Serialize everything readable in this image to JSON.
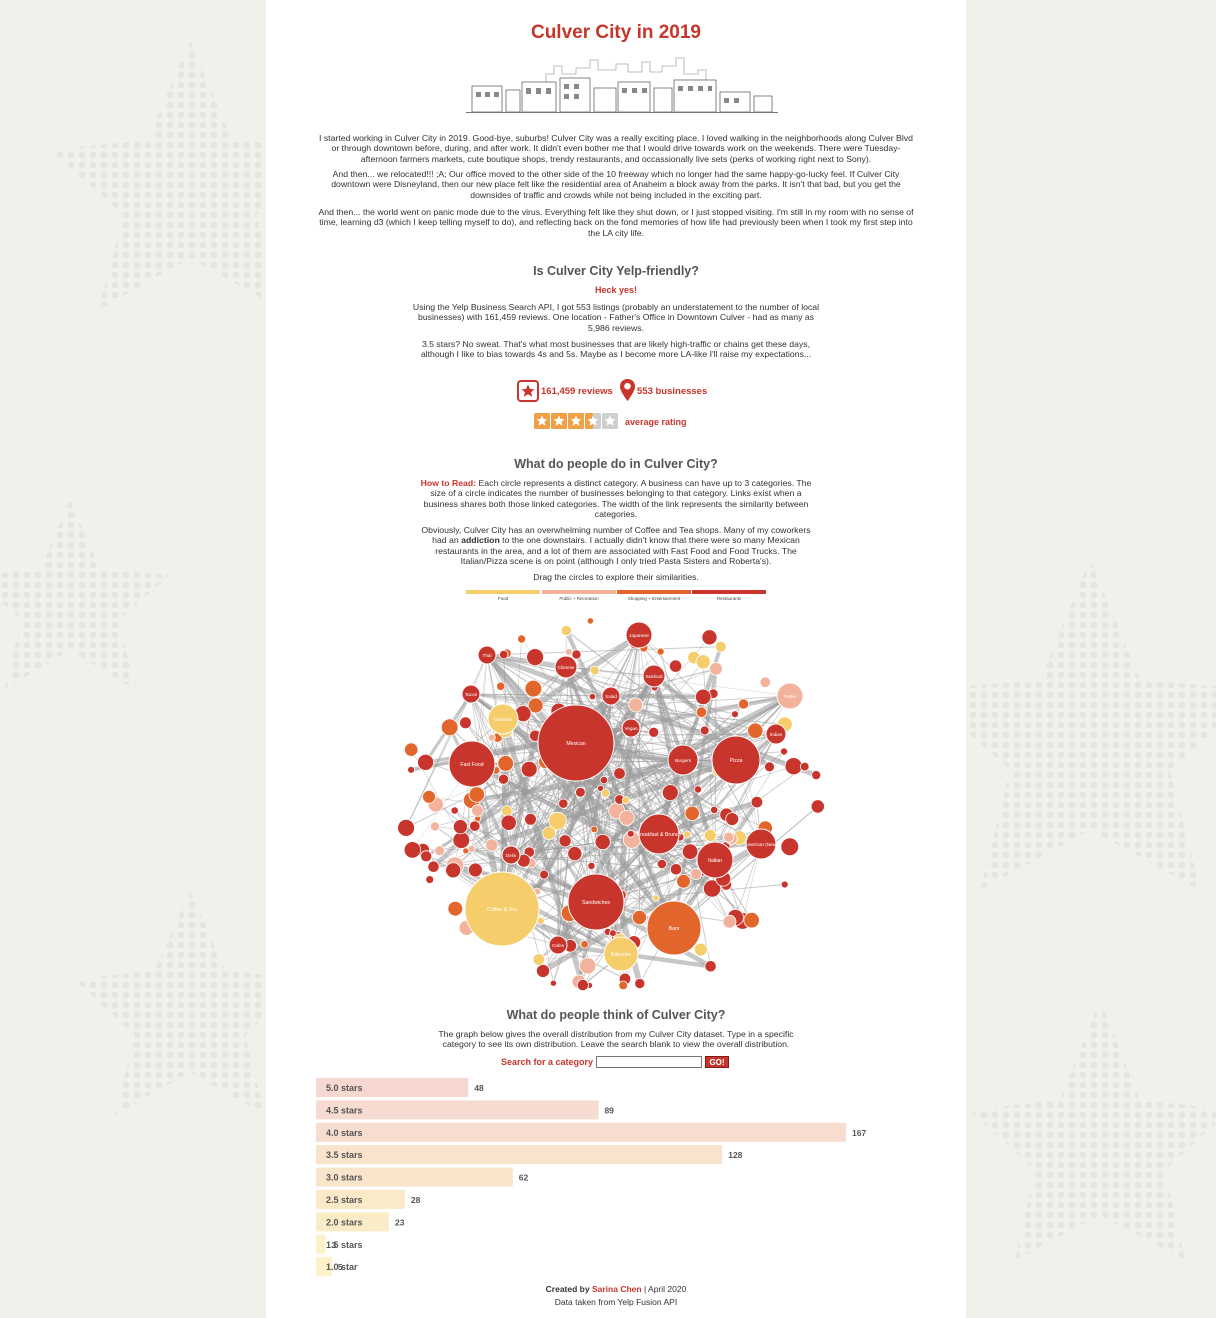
{
  "header": {
    "title": "Culver City in 2019"
  },
  "intro": {
    "p1": "I started working in Culver City in 2019. Good-bye, suburbs! Culver City was a really exciting place. I loved walking in the neighborhoods along Culver Blvd or through downtown before, during, and after work. It didn't even bother me that I would drive towards work on the weekends. There were Tuesday-afternoon farmers markets, cute boutique shops, trendy restaurants, and occassionally live sets (perks of working right next to Sony).",
    "p2": "And then... we relocated!!! ;A; Our office moved to the other side of the 10 freeway which no longer had the same happy-go-lucky feel. If Culver City downtown were Disneyland, then our new place felt like the residential area of Anaheim a block away from the parks. It isn't that bad, but you get the downsides of traffic and crowds while not being included in the exciting part.",
    "p3": "And then... the world went on panic mode due to the virus. Everything felt like they shut down, or I just stopped visiting. I'm still in my room with no sense of time, learning d3 (which I keep telling myself to do), and reflecting back on the fond memories of how life had previously been when I took my first step into the LA city life."
  },
  "yelp_section": {
    "heading": "Is Culver City Yelp-friendly?",
    "answer": "Heck yes!",
    "p1": "Using the Yelp Business Search API, I got 553 listings (probably an understatement to the number of local businesses) with 161,459 reviews. One location - Father's Office in Downtown Culver - had as many as 5,986 reviews.",
    "p2": "3.5 stars? No sweat. That's what most businesses that are likely high-traffic or chains get these days, although I like to bias towards 4s and 5s. Maybe as I become more LA-like I'll raise my expectations...",
    "reviews_stat": "161,459 reviews",
    "business_stat": "553 businesses",
    "rating_label": "average rating",
    "rating_value": 3.5,
    "rating_max": 5,
    "colors": {
      "accent": "#c8352c",
      "star_fill": "#f0a145",
      "star_empty": "#cfcfcf"
    }
  },
  "network_section": {
    "heading": "What do people do in Culver City?",
    "how_label": "How to Read:",
    "how_text": " Each circle represents a distinct category. A business can have up to 3 categories. The size of a circle indicates the number of businesses belonging to that category. Links exist when a business shares both those linked categories. The width of the link represents the similarity between categories.",
    "p2_before": "Obviously, Culver City has an overwhelming number of Coffee and Tea shops. Many of my coworkers had an ",
    "p2_bold": "addiction",
    "p2_after": " to the one downstairs. I actually didn't know that there were so many Mexican restaurants in the area, and a lot of them are associated with Fast Food and Food Trucks. The Italian/Pizza scene is on point (although I only tried Pasta Sisters and Roberta's).",
    "drag_hint": "Drag the circles to explore their similarities.",
    "legend": [
      {
        "label": "Food",
        "color": "#f5cd6a"
      },
      {
        "label": "Public + Recreation",
        "color": "#f2b29c"
      },
      {
        "label": "Shopping + Entertainment",
        "color": "#e2662c"
      },
      {
        "label": "Restaurants",
        "color": "#c8352c"
      }
    ],
    "nodes": [
      {
        "label": "Mexican",
        "group": "Restaurants"
      },
      {
        "label": "Coffee & Tea",
        "group": "Food"
      },
      {
        "label": "Sandwiches",
        "group": "Restaurants"
      },
      {
        "label": "Fast Food",
        "group": "Restaurants"
      },
      {
        "label": "Pizza",
        "group": "Restaurants"
      },
      {
        "label": "Bars",
        "group": "Shopping + Entertainment"
      },
      {
        "label": "Breakfast & Brunch",
        "group": "Restaurants"
      },
      {
        "label": "Burgers",
        "group": "Restaurants"
      },
      {
        "label": "American (New)",
        "group": "Restaurants"
      },
      {
        "label": "Italian",
        "group": "Restaurants"
      },
      {
        "label": "Desserts",
        "group": "Food"
      },
      {
        "label": "Japanese",
        "group": "Restaurants"
      },
      {
        "label": "Chinese",
        "group": "Restaurants"
      },
      {
        "label": "Seafood",
        "group": "Restaurants"
      },
      {
        "label": "Bakeries",
        "group": "Food"
      },
      {
        "label": "Indian",
        "group": "Restaurants"
      },
      {
        "label": "Thai",
        "group": "Restaurants"
      },
      {
        "label": "Tacos",
        "group": "Restaurants"
      },
      {
        "label": "Salad",
        "group": "Restaurants"
      },
      {
        "label": "Vegan",
        "group": "Restaurants"
      },
      {
        "label": "Delis",
        "group": "Restaurants"
      },
      {
        "label": "Cafes",
        "group": "Restaurants"
      },
      {
        "label": "Parks",
        "group": "Public + Recreation"
      }
    ]
  },
  "ratings_section": {
    "heading": "What do people think of Culver City?",
    "description": "The graph below gives the overall distribution from my Culver City dataset. Type in a specific category to see its own distribution. Leave the search blank to view the overall distribution.",
    "search_label": "Search for a category",
    "search_value": "",
    "go_label": "GO!"
  },
  "chart_data": {
    "type": "bar",
    "orientation": "horizontal",
    "categories": [
      "5.0 stars",
      "4.5 stars",
      "4.0 stars",
      "3.5 stars",
      "3.0 stars",
      "2.5 stars",
      "2.0 stars",
      "1.5 stars",
      "1.0 star"
    ],
    "values": [
      48,
      89,
      167,
      128,
      62,
      28,
      23,
      3,
      5
    ],
    "colors": [
      "#f6d8d0",
      "#f6dcd0",
      "#f7ddd0",
      "#f8e3cc",
      "#f9e5cb",
      "#faeac8",
      "#fbecc8",
      "#fcf1c8",
      "#fcf1c8"
    ],
    "xlim": [
      0,
      167
    ],
    "title": "",
    "xlabel": "",
    "ylabel": ""
  },
  "footer": {
    "created_by": "Created by",
    "author": "Sarina Chen",
    "date": " | April 2020",
    "source": "Data taken from Yelp Fusion API"
  }
}
